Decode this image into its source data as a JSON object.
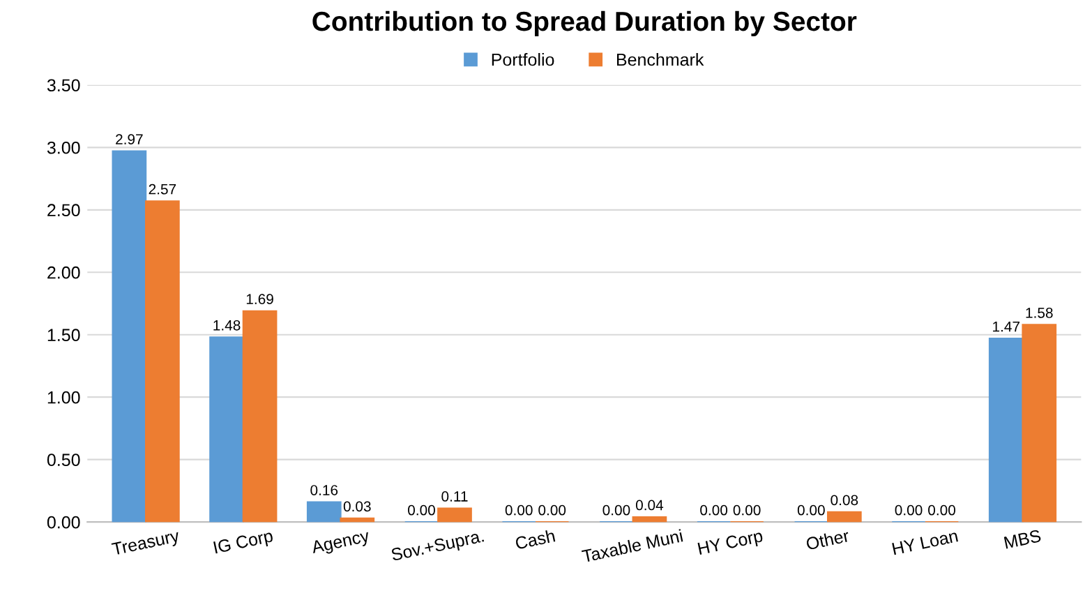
{
  "chart_data": {
    "type": "bar",
    "title": "Contribution to Spread Duration by Sector",
    "categories": [
      "Treasury",
      "IG Corp",
      "Agency",
      "Sov.+Supra.",
      "Cash",
      "Taxable Muni",
      "HY Corp",
      "Other",
      "HY Loan",
      "MBS"
    ],
    "series": [
      {
        "name": "Portfolio",
        "color": "#5b9bd5",
        "values": [
          2.97,
          1.48,
          0.16,
          0.0,
          0.0,
          0.0,
          0.0,
          0.0,
          0.0,
          1.47
        ],
        "value_labels": [
          "2.97",
          "1.48",
          "0.16",
          "0.00",
          "0.00",
          "0.00",
          "0.00",
          "0.00",
          "0.00",
          "1.47"
        ]
      },
      {
        "name": "Benchmark",
        "color": "#ed7d31",
        "values": [
          2.57,
          1.69,
          0.03,
          0.11,
          0.0,
          0.04,
          0.0,
          0.08,
          0.0,
          1.58
        ],
        "value_labels": [
          "2.57",
          "1.69",
          "0.03",
          "0.11",
          "0.00",
          "0.04",
          "0.00",
          "0.08",
          "0.00",
          "1.58"
        ]
      }
    ],
    "ylim": [
      0,
      3.5
    ],
    "yticks": [
      {
        "value": 0,
        "label": "0.00"
      },
      {
        "value": 0.5,
        "label": "0.50"
      },
      {
        "value": 1,
        "label": "1.00"
      },
      {
        "value": 1.5,
        "label": "1.50"
      },
      {
        "value": 2,
        "label": "2.00"
      },
      {
        "value": 2.5,
        "label": "2.50"
      },
      {
        "value": 3,
        "label": "3.00"
      },
      {
        "value": 3.5,
        "label": "3.50"
      }
    ],
    "grid": "y",
    "legend": "top"
  }
}
